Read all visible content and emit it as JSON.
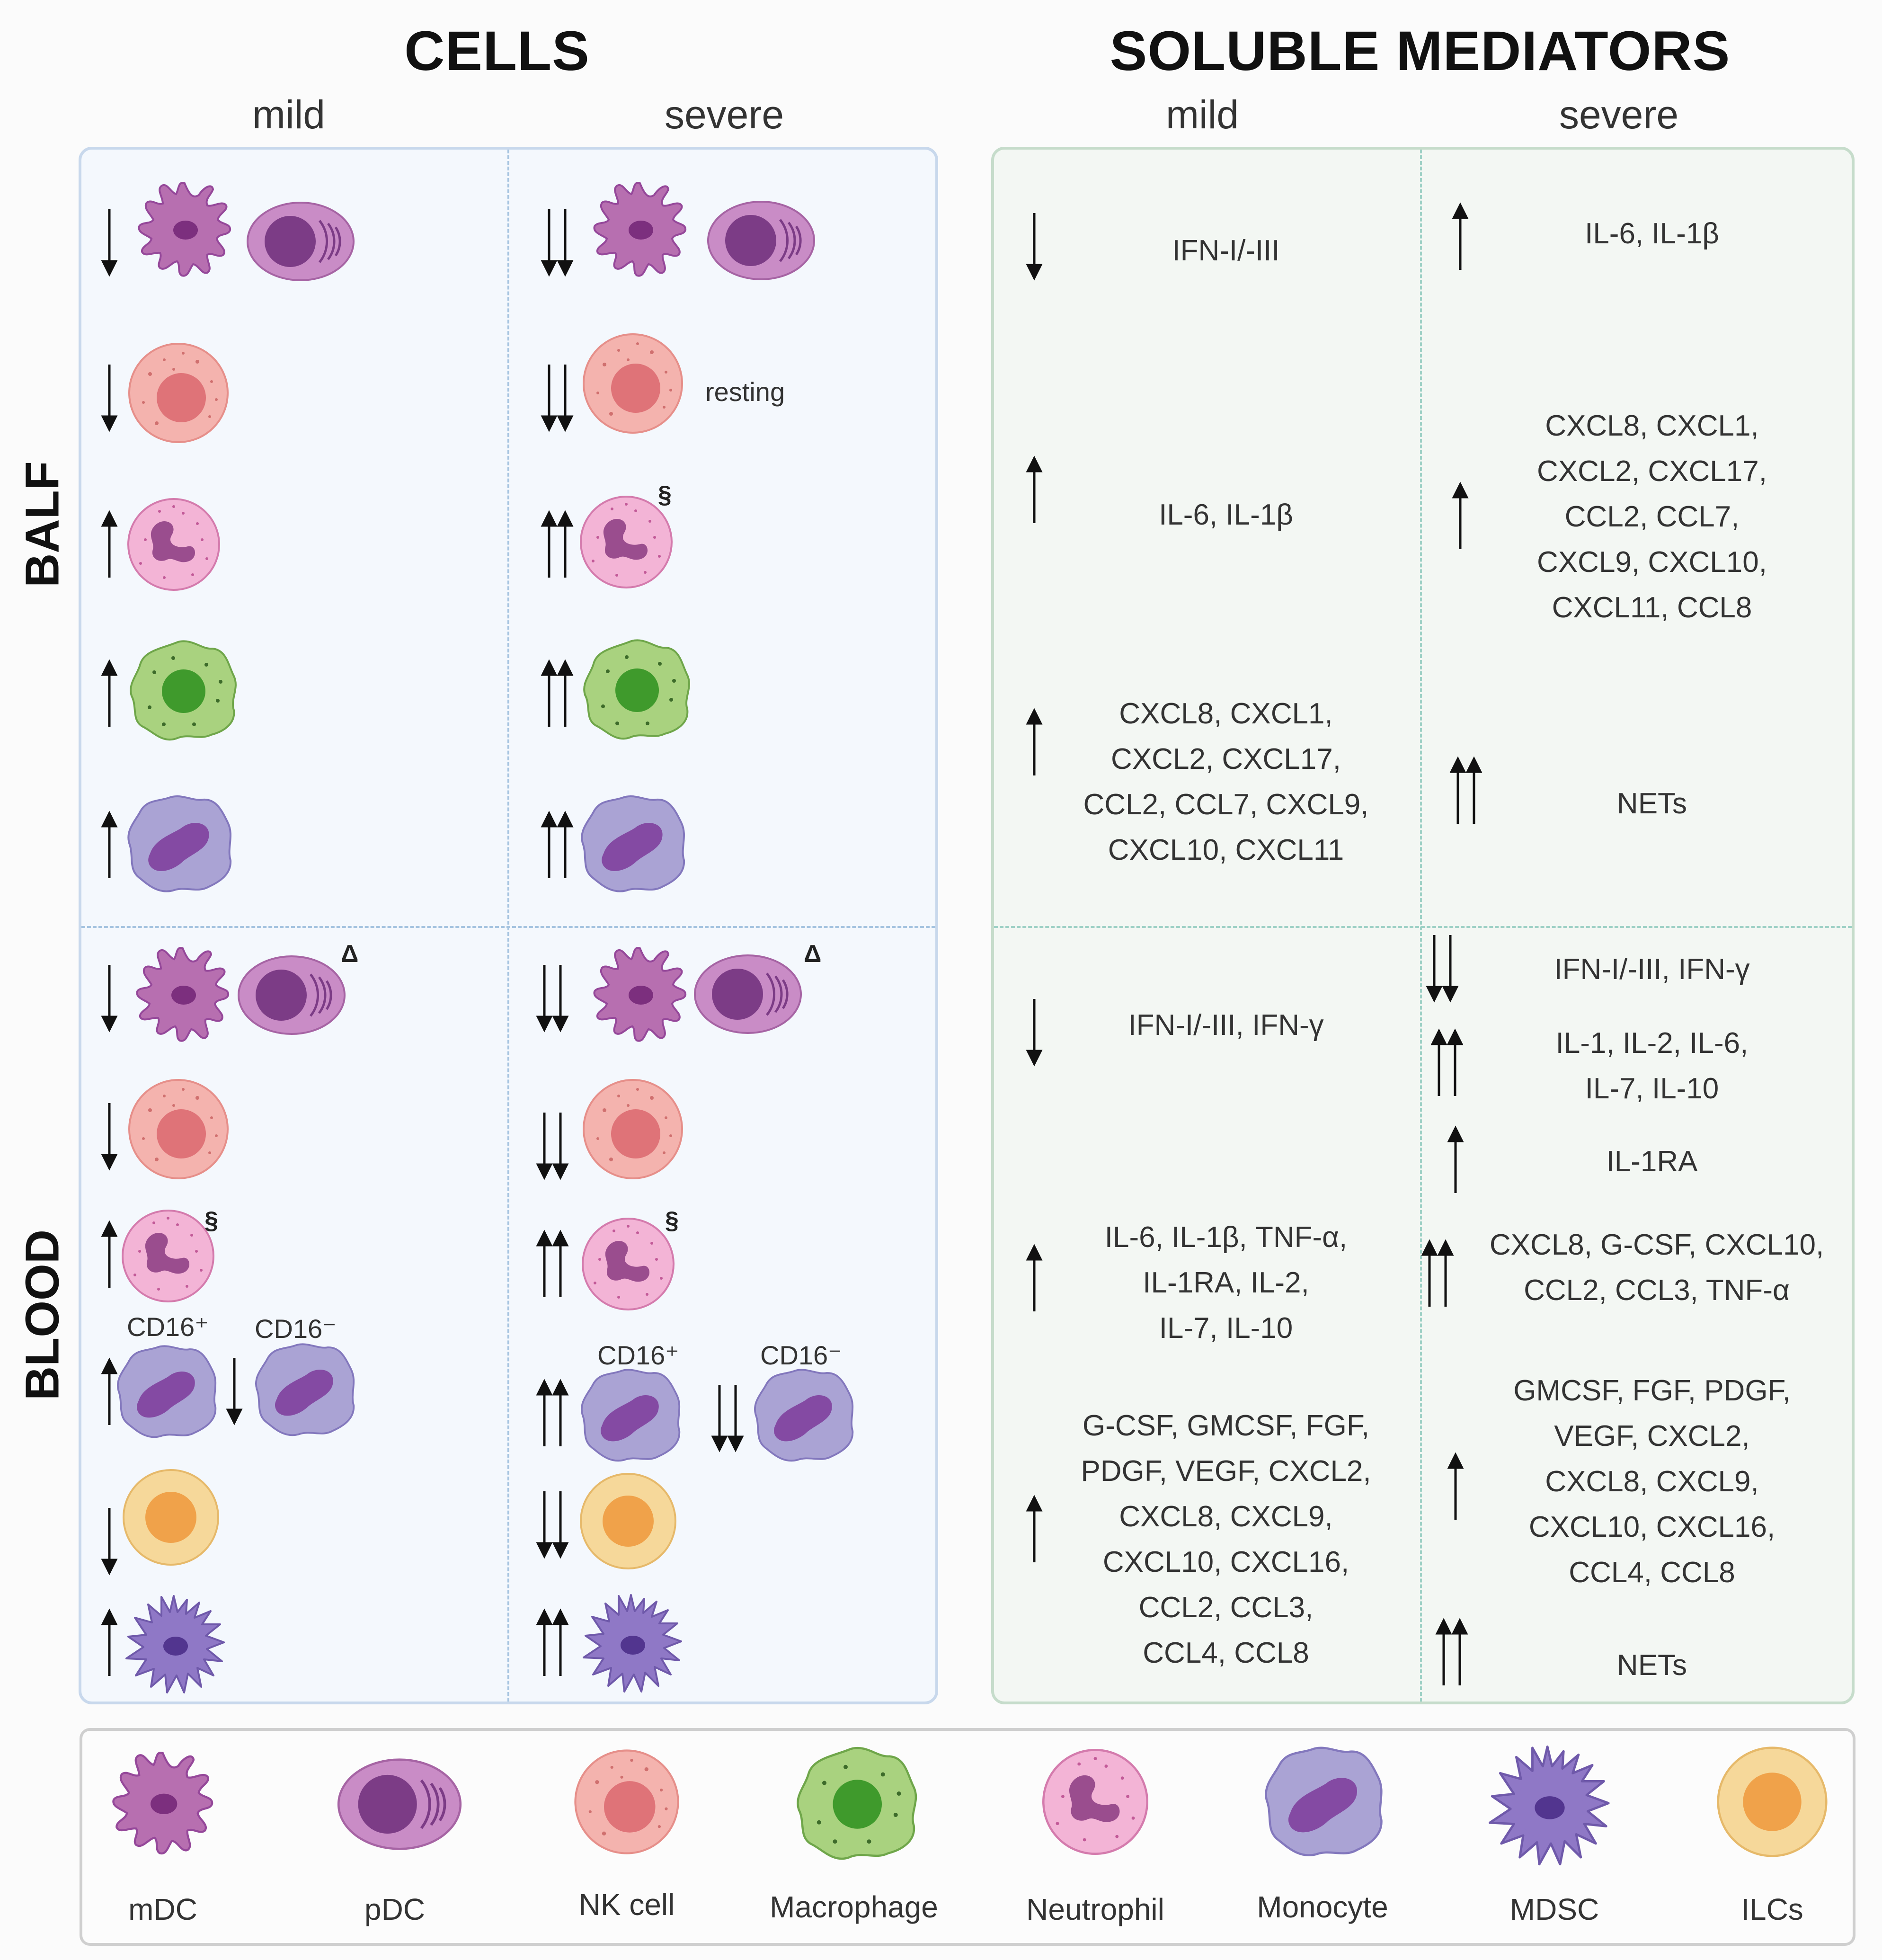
{
  "headings": {
    "cells": "CELLS",
    "soluble": "SOLUBLE MEDIATORS",
    "mild_cells": "mild",
    "severe_cells": "severe",
    "mild_sol": "mild",
    "severe_sol": "severe",
    "balf": "BALF",
    "blood": "BLOOD"
  },
  "annotations": {
    "resting": "resting",
    "section": "§",
    "delta": "Δ",
    "cd16_pos": "CD16⁺",
    "cd16_neg": "CD16⁻"
  },
  "cell_changes": {
    "balf": [
      {
        "cells": [
          "mDC",
          "pDC"
        ],
        "mild": "↓",
        "severe": "↓↓"
      },
      {
        "cells": [
          "NK cell"
        ],
        "mild": "↓",
        "severe": "↓↓",
        "severe_note": "resting"
      },
      {
        "cells": [
          "Neutrophil"
        ],
        "mild": "↑",
        "severe": "↑↑",
        "severe_note": "§"
      },
      {
        "cells": [
          "Macrophage"
        ],
        "mild": "↑",
        "severe": "↑↑"
      },
      {
        "cells": [
          "Monocyte"
        ],
        "mild": "↑",
        "severe": "↑↑"
      }
    ],
    "blood": [
      {
        "cells": [
          "mDC",
          "pDC"
        ],
        "mild": "↓",
        "severe": "↓↓",
        "mild_note": "Δ",
        "severe_note": "Δ"
      },
      {
        "cells": [
          "NK cell"
        ],
        "mild": "↓",
        "severe": "↓↓"
      },
      {
        "cells": [
          "Neutrophil"
        ],
        "mild": "↑",
        "severe": "↑↑",
        "mild_note": "§",
        "severe_note": "§"
      },
      {
        "cells": [
          "Monocyte CD16⁺",
          "Monocyte CD16⁻"
        ],
        "mild": [
          "↑",
          "↓"
        ],
        "severe": [
          "↑↑",
          "↓↓"
        ]
      },
      {
        "cells": [
          "ILCs"
        ],
        "mild": "↓",
        "severe": "↓↓"
      },
      {
        "cells": [
          "MDSC"
        ],
        "mild": "↑",
        "severe": "↑↑"
      }
    ]
  },
  "mediators": {
    "balf_mild": [
      {
        "dir": "↓",
        "lines": [
          "IFN-I/-III"
        ]
      },
      {
        "dir": "↑",
        "lines": [
          "IL-6, IL-1β"
        ]
      },
      {
        "dir": "↑",
        "lines": [
          "CXCL8, CXCL1,",
          "CXCL2, CXCL17,",
          "CCL2, CCL7, CXCL9,",
          "CXCL10, CXCL11"
        ]
      }
    ],
    "balf_severe": [
      {
        "dir": "↑",
        "lines": [
          "IL-6, IL-1β"
        ]
      },
      {
        "dir": "↑",
        "lines": [
          "CXCL8, CXCL1,",
          "CXCL2, CXCL17,",
          "CCL2, CCL7,",
          "CXCL9, CXCL10,",
          "CXCL11, CCL8"
        ]
      },
      {
        "dir": "↑↑",
        "lines": [
          "NETs"
        ]
      }
    ],
    "blood_mild": [
      {
        "dir": "↓",
        "lines": [
          "IFN-I/-III, IFN-γ"
        ]
      },
      {
        "dir": "↑",
        "lines": [
          "IL-6, IL-1β, TNF-α,",
          "IL-1RA, IL-2,",
          "IL-7, IL-10"
        ]
      },
      {
        "dir": "↑",
        "lines": [
          "G-CSF, GMCSF, FGF,",
          "PDGF, VEGF, CXCL2,",
          "CXCL8, CXCL9,",
          "CXCL10, CXCL16,",
          "CCL2, CCL3,",
          "CCL4, CCL8"
        ]
      }
    ],
    "blood_severe": [
      {
        "dir": "↓↓",
        "lines": [
          "IFN-I/-III, IFN-γ"
        ]
      },
      {
        "dir": "↑↑",
        "lines": [
          "IL-1, IL-2, IL-6,",
          "IL-7, IL-10"
        ]
      },
      {
        "dir": "↑",
        "lines": [
          "IL-1RA"
        ]
      },
      {
        "dir": "↑↑",
        "lines": [
          "CXCL8, G-CSF, CXCL10,",
          "CCL2, CCL3, TNF-α"
        ]
      },
      {
        "dir": "↑",
        "lines": [
          "GMCSF, FGF, PDGF,",
          "VEGF, CXCL2,",
          "CXCL8, CXCL9,",
          "CXCL10, CXCL16,",
          "CCL4, CCL8"
        ]
      },
      {
        "dir": "↑↑",
        "lines": [
          "NETs"
        ]
      }
    ]
  },
  "legend": [
    "mDC",
    "pDC",
    "NK cell",
    "Macrophage",
    "Neutrophil",
    "Monocyte",
    "MDSC",
    "ILCs"
  ],
  "colors": {
    "mdc": "#b76fb0",
    "pdc": "#c98cc6",
    "nk": "#eea9a5",
    "macrophage": "#a9d27f",
    "neutrophil": "#f3b4d6",
    "monocyte": "#aaa3d4",
    "mdsc": "#8f78c6",
    "ilc": "#f6d89a"
  }
}
